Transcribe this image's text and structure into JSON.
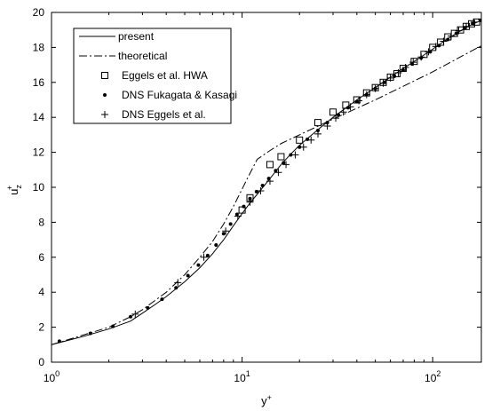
{
  "chart_data": {
    "type": "line",
    "title": "",
    "xlabel": "y+",
    "ylabel": "u+z",
    "x_scale": "log",
    "xlim": [
      1,
      180
    ],
    "ylim": [
      0,
      20
    ],
    "x_ticks": [
      {
        "value": 1,
        "base": "10",
        "exp": "0"
      },
      {
        "value": 10,
        "base": "10",
        "exp": "1"
      },
      {
        "value": 100,
        "base": "10",
        "exp": "2"
      }
    ],
    "y_ticks": [
      0,
      2,
      4,
      6,
      8,
      10,
      12,
      14,
      16,
      18,
      20
    ],
    "grid": false,
    "legend_position": "top-left",
    "series": [
      {
        "name": "present",
        "style": "solid",
        "x": [
          1,
          1.5,
          2,
          2.6,
          3,
          3.5,
          4,
          5,
          6,
          7,
          8,
          9,
          10,
          11,
          12,
          14,
          16,
          18,
          20,
          25,
          30,
          40,
          50,
          60,
          70,
          80,
          100,
          120,
          140,
          160,
          180
        ],
        "y": [
          1.0,
          1.5,
          1.9,
          2.35,
          2.8,
          3.3,
          3.75,
          4.6,
          5.4,
          6.2,
          7.0,
          7.8,
          8.5,
          9.1,
          9.6,
          10.5,
          11.3,
          11.9,
          12.4,
          13.3,
          14.0,
          15.0,
          15.7,
          16.3,
          16.8,
          17.2,
          17.9,
          18.5,
          18.95,
          19.3,
          19.55
        ]
      },
      {
        "name": "theoretical",
        "style": "dash-dot",
        "x": [
          1,
          2,
          2.6,
          3,
          4,
          5,
          6,
          7,
          8,
          9,
          10,
          11,
          12,
          14,
          16,
          20,
          30,
          50,
          100,
          180
        ],
        "y": [
          1.0,
          2.0,
          2.6,
          3.0,
          4.0,
          5.0,
          6.0,
          6.9,
          7.9,
          8.9,
          9.9,
          10.8,
          11.6,
          12.1,
          12.5,
          13.0,
          13.9,
          15.0,
          16.6,
          18.1
        ]
      },
      {
        "name": "Eggels et al. HWA",
        "marker": "square",
        "x": [
          10,
          11,
          14,
          16,
          20,
          25,
          30,
          35,
          40,
          45,
          50,
          55,
          60,
          65,
          70,
          80,
          90,
          100,
          110,
          120,
          130,
          140,
          150,
          160,
          170
        ],
        "y": [
          8.7,
          9.4,
          11.3,
          11.75,
          12.7,
          13.7,
          14.3,
          14.7,
          15.0,
          15.4,
          15.7,
          16.0,
          16.3,
          16.5,
          16.8,
          17.2,
          17.6,
          18.0,
          18.3,
          18.6,
          18.8,
          19.0,
          19.2,
          19.35,
          19.45
        ]
      },
      {
        "name": "DNS Fukagata & Kasagi",
        "marker": "dot",
        "x": [
          1.1,
          1.6,
          2.1,
          2.6,
          3.2,
          3.8,
          4.5,
          5.2,
          5.9,
          6.6,
          7.3,
          8.0,
          8.7,
          9.4,
          10.2,
          11.0,
          11.9,
          12.8,
          13.8,
          15.0,
          16.5,
          18.0,
          20.0,
          22.0,
          25.0,
          28.0,
          32.0,
          36.0,
          40.0,
          45.0,
          50.0,
          56.0,
          63.0,
          70.0,
          78.0,
          87.0,
          97.0,
          108.0,
          120.0,
          133.0,
          147.0,
          162.0,
          178.0
        ],
        "y": [
          1.2,
          1.65,
          2.05,
          2.6,
          3.1,
          3.6,
          4.25,
          4.95,
          5.55,
          6.1,
          6.7,
          7.35,
          7.9,
          8.45,
          8.9,
          9.35,
          9.75,
          10.1,
          10.5,
          10.95,
          11.4,
          11.85,
          12.3,
          12.75,
          13.25,
          13.7,
          14.15,
          14.55,
          14.9,
          15.3,
          15.65,
          16.0,
          16.35,
          16.7,
          17.05,
          17.4,
          17.75,
          18.1,
          18.45,
          18.8,
          19.1,
          19.35,
          19.55
        ]
      },
      {
        "name": "DNS Eggels et al.",
        "marker": "plus",
        "x": [
          2.75,
          4.6,
          6.3,
          8.2,
          9.5,
          11.0,
          12.5,
          14.0,
          15.5,
          17.0,
          19.0,
          21.0,
          23.0,
          25.0,
          28.0,
          31.0,
          34.0,
          37.0,
          41.0,
          45.0,
          50.0,
          55.0,
          60.0,
          66.0,
          72.0,
          79.0,
          87.0,
          95.0,
          104.0,
          114.0,
          125.0,
          137.0,
          150.0,
          165.0,
          180.0
        ],
        "y": [
          2.75,
          4.55,
          6.0,
          7.5,
          8.35,
          9.15,
          9.8,
          10.35,
          10.85,
          11.3,
          11.85,
          12.3,
          12.7,
          13.05,
          13.5,
          13.95,
          14.3,
          14.6,
          14.95,
          15.3,
          15.65,
          15.95,
          16.25,
          16.55,
          16.85,
          17.15,
          17.45,
          17.75,
          18.05,
          18.35,
          18.65,
          18.95,
          19.2,
          19.45,
          19.6
        ]
      }
    ]
  }
}
